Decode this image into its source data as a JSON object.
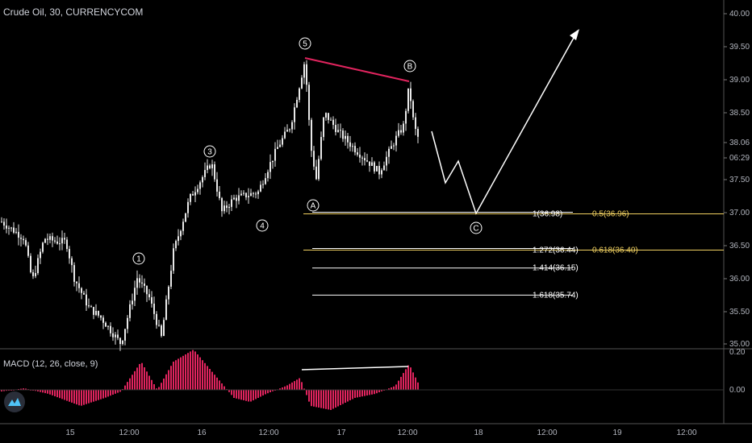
{
  "chart_title": "Crude Oil, 30, CURRENCYCOM",
  "macd_label": "MACD (12, 26, close, 9)",
  "colors": {
    "background": "#000000",
    "candle": "#e8e8e8",
    "divergence": "#e0245e",
    "fib": "#f0d060",
    "macd_hist": "#e0245e",
    "projection": "#ffffff"
  },
  "price_axis": {
    "ticks": [
      "40.00",
      "39.50",
      "39.00",
      "38.50",
      "38.06",
      "06:29",
      "37.50",
      "37.00",
      "36.50",
      "36.00",
      "35.50",
      "35.00"
    ],
    "current_price": "38.06",
    "countdown": "06:29"
  },
  "macd_axis": {
    "ticks": [
      "0.20",
      "0.00"
    ]
  },
  "time_axis": {
    "labels": [
      "15",
      "12:00",
      "16",
      "12:00",
      "17",
      "12:00",
      "18",
      "12:00",
      "19",
      "12:00"
    ]
  },
  "fib_levels": [
    {
      "left": "1(36.98)",
      "right": "0.5(36.96)",
      "price": 36.97
    },
    {
      "left": "1.272(36.44)",
      "right": "0.618(36.40)",
      "price": 36.42
    },
    {
      "left": "1.414(36.15)",
      "right": "",
      "price": 36.15
    },
    {
      "left": "1.618(35.74)",
      "right": "",
      "price": 35.74
    }
  ],
  "wave_labels": [
    "1",
    "3",
    "4",
    "5",
    "A",
    "B",
    "C"
  ],
  "chart_data": {
    "type": "candlestick",
    "symbol": "Crude Oil",
    "timeframe": "30",
    "source": "CURRENCYCOM",
    "ylim": [
      35.0,
      40.0
    ],
    "waves": [
      {
        "label": "1",
        "price": 36.05
      },
      {
        "label": "3",
        "price": 37.75
      },
      {
        "label": "4",
        "price": 36.85
      },
      {
        "label": "5",
        "price": 39.33
      },
      {
        "label": "A",
        "price": 37.35
      },
      {
        "label": "B",
        "price": 38.97
      },
      {
        "label": "C",
        "price": 36.97
      }
    ]
  }
}
